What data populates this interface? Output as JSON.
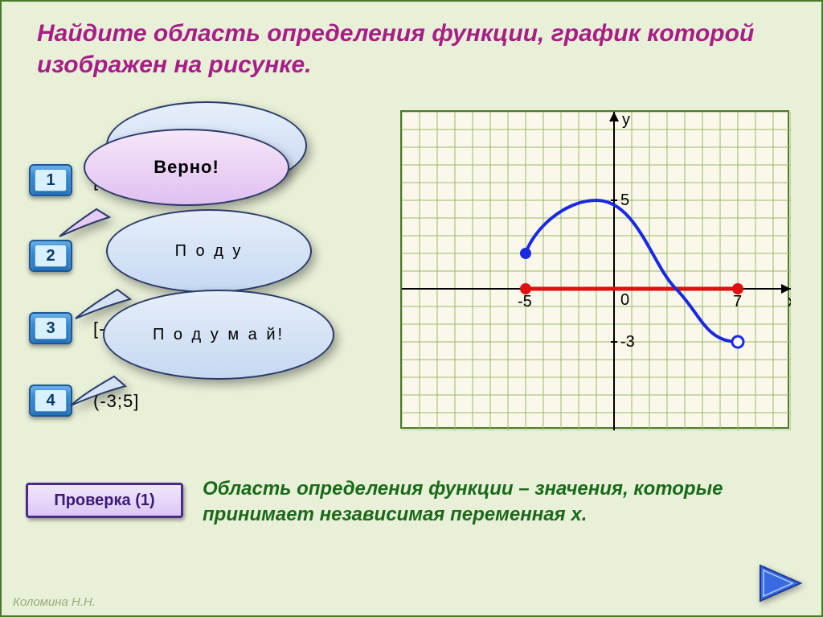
{
  "title": "Найдите область определения функции, график которой изображен на рисунке.",
  "buttons": {
    "b1": "1",
    "b2": "2",
    "b3": "3",
    "b4": "4"
  },
  "options": {
    "o1": "[-",
    "o3": "[-",
    "o4": "(-3;5]"
  },
  "bubbles": {
    "correct": "Верно!",
    "think1": "П о д у",
    "think2": "П о д у м а й!"
  },
  "check_label": "Проверка  (1)",
  "explanation": "Область определения функции – значения, которые принимает независимая переменная х.",
  "author": "Коломина Н.Н.",
  "graph": {
    "grid": {
      "cell": 22,
      "cols": 22,
      "rows": 18,
      "color": "#9ab86a"
    },
    "axis": {
      "origin_col": 12,
      "origin_row": 10,
      "color": "#000000",
      "arrow": true,
      "labels": {
        "x": "х",
        "y": "у",
        "origin": "0"
      }
    },
    "ticks": {
      "y5": {
        "row": 5,
        "label": "5"
      },
      "yn3": {
        "row": 13,
        "label": "-3"
      },
      "xn5": {
        "col": 7,
        "label": "-5"
      },
      "x7": {
        "col": 19,
        "label": "7"
      }
    },
    "domain_segment": {
      "from_col": 7,
      "to_col": 19,
      "row": 10,
      "color": "#e01010"
    },
    "curve": {
      "color": "#1a2ae0",
      "width": 4,
      "start": {
        "col": 7,
        "row": 8,
        "closed": true
      },
      "peak": {
        "col": 11,
        "row": 5
      },
      "cross": {
        "col": 15.5,
        "row": 10
      },
      "end": {
        "col": 19,
        "row": 13,
        "closed": false
      }
    },
    "colors": {
      "bg": "#fbf7ea"
    }
  },
  "style": {
    "slide_bg": "#e8f0d8",
    "slide_border": "#4a7a2a",
    "title_color": "#a81e87",
    "btn_grad_top": "#2e8edf",
    "btn_grad_bot": "#2270b8",
    "bubble_blue_top": "#e6eefa",
    "bubble_blue_bot": "#c6d8f2",
    "bubble_pink_top": "#f6e6fa",
    "bubble_pink_bot": "#e0c0f0",
    "explain_color": "#1a6a1a",
    "nav_fill": "#3a6ae0"
  }
}
